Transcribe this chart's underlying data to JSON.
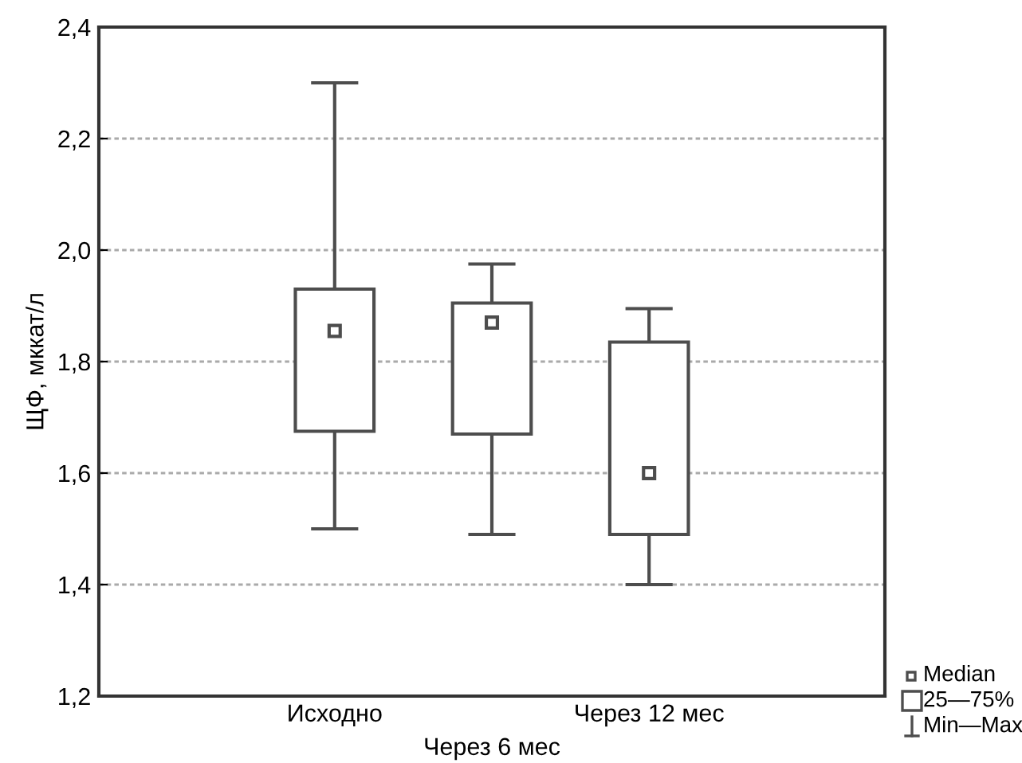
{
  "chart_data": {
    "type": "box",
    "ylabel": "ЩФ, мккат/л",
    "categories": [
      null,
      "Исходно",
      "Через 6 мес",
      "Через 12 мес",
      null
    ],
    "boxes": [
      null,
      {
        "low": 1.5,
        "q1": 1.675,
        "median": 1.855,
        "q3": 1.93,
        "high": 2.3
      },
      {
        "low": 1.49,
        "q1": 1.67,
        "median": 1.87,
        "q3": 1.905,
        "high": 1.975
      },
      {
        "low": 1.4,
        "q1": 1.49,
        "median": 1.6,
        "q3": 1.835,
        "high": 1.895
      },
      null
    ],
    "color": "#4d4d4d",
    "ylim": [
      1.2,
      2.4
    ],
    "yticks": [
      {
        "value": 1.2,
        "label": "1,2"
      },
      {
        "value": 1.4,
        "label": "1,4"
      },
      {
        "value": 1.6,
        "label": "1,6"
      },
      {
        "value": 1.8,
        "label": "1,8"
      },
      {
        "value": 2.0,
        "label": "2,0"
      },
      {
        "value": 2.2,
        "label": "2,2"
      },
      {
        "value": 2.4,
        "label": "2,4"
      }
    ],
    "grid": "y",
    "annotations": [
      "Median",
      "25—75%",
      "Min—Max"
    ]
  }
}
